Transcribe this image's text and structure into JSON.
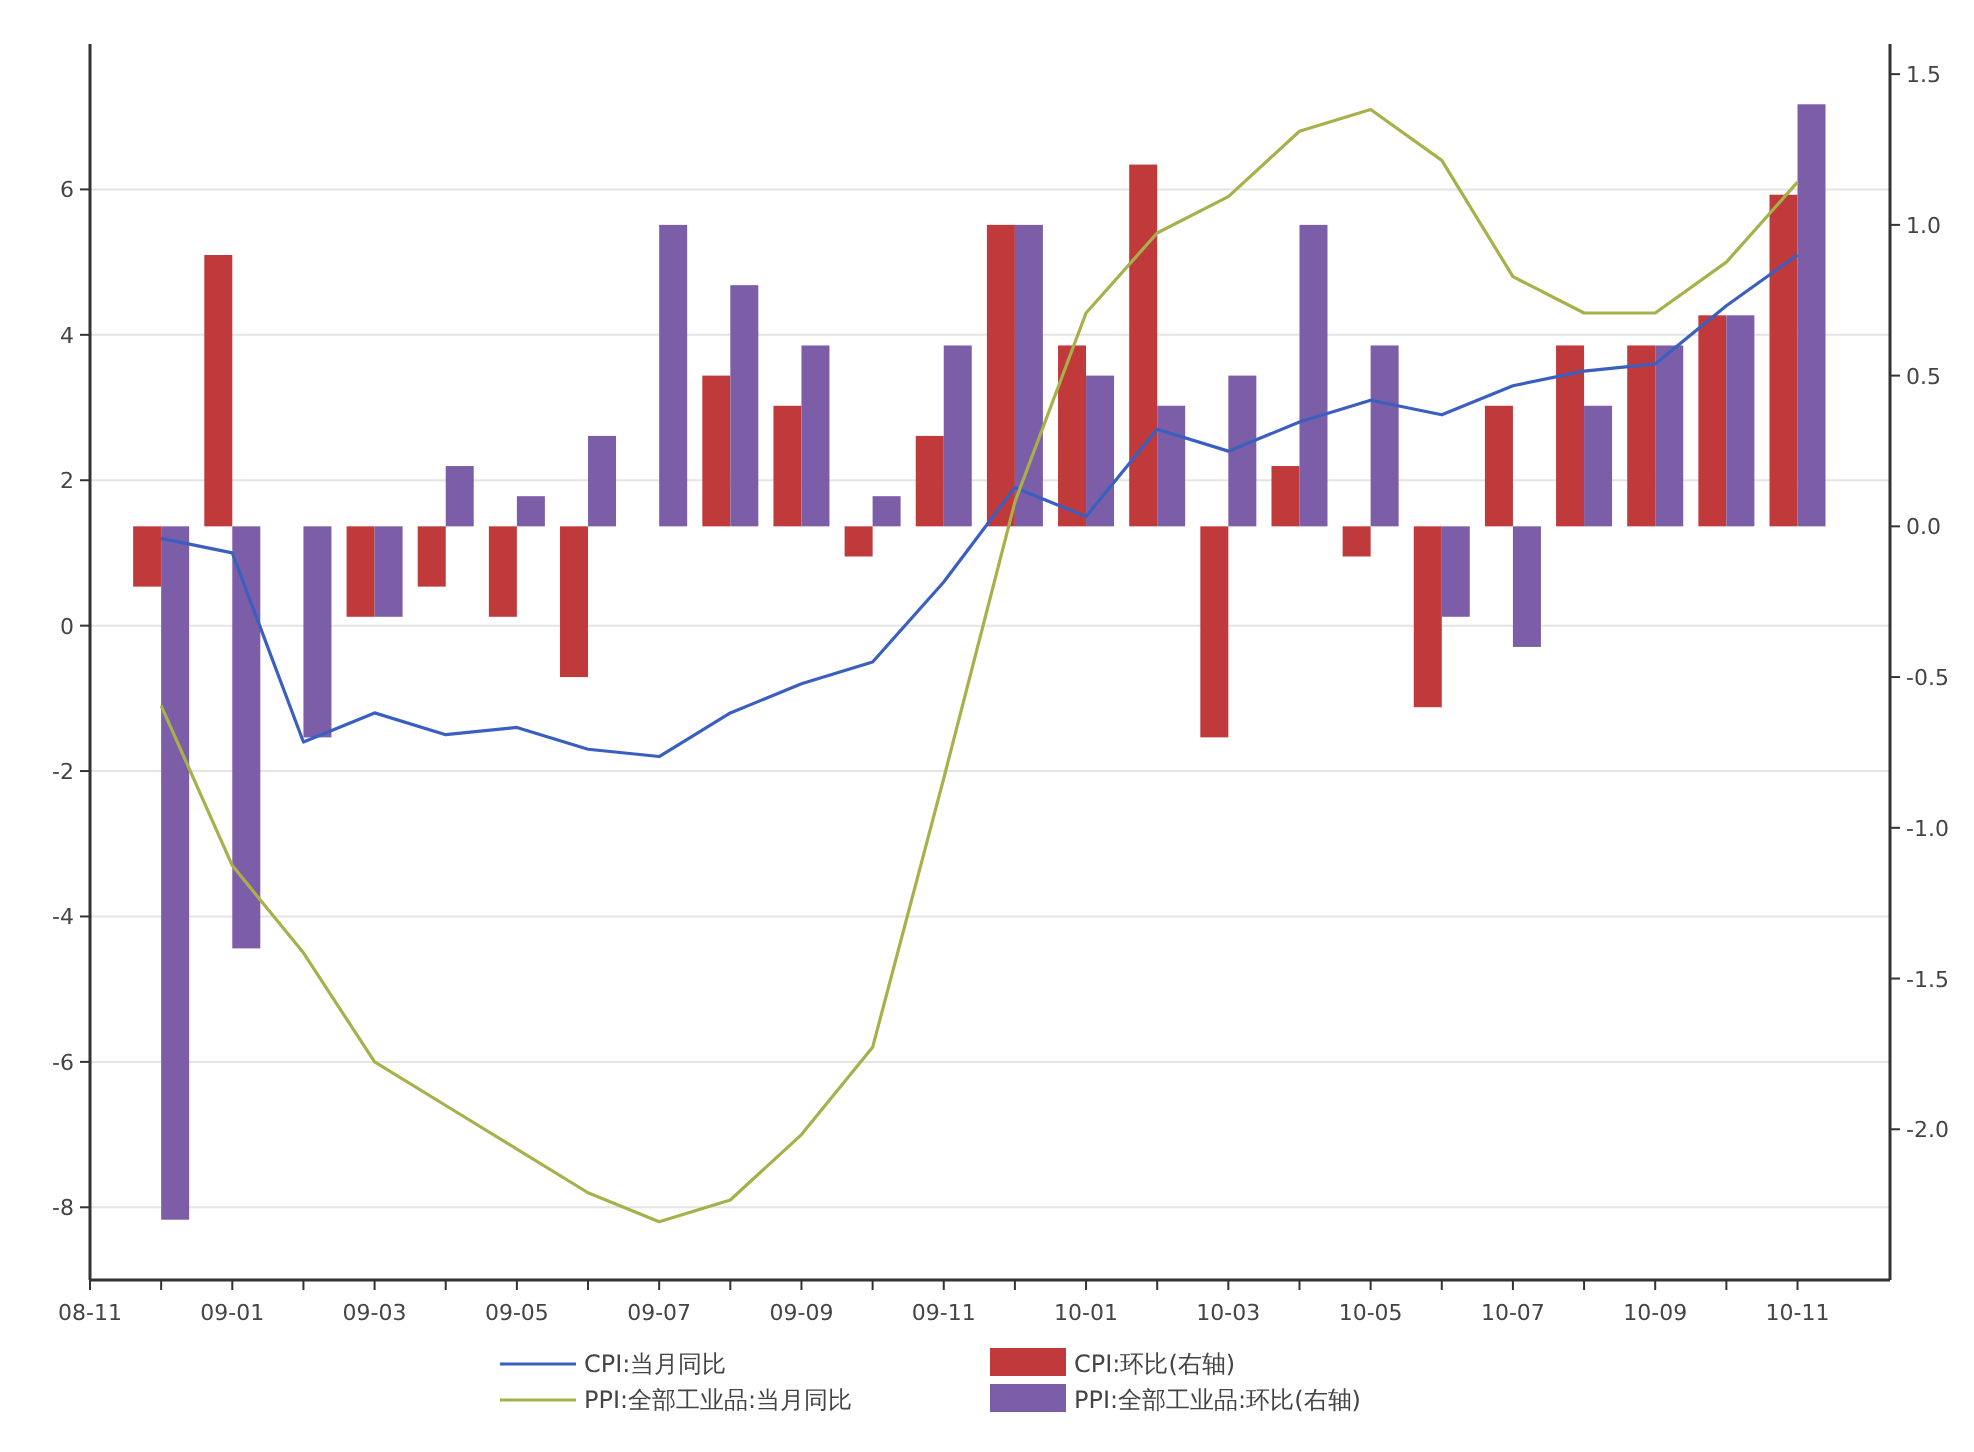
{
  "chart_data": {
    "type": "bar",
    "x": [
      "2008-12",
      "2009-01",
      "2009-02",
      "2009-03",
      "2009-04",
      "2009-05",
      "2009-06",
      "2009-07",
      "2009-08",
      "2009-09",
      "2009-10",
      "2009-11",
      "2009-12",
      "2010-01",
      "2010-02",
      "2010-03",
      "2010-04",
      "2010-05",
      "2010-06",
      "2010-07",
      "2010-08",
      "2010-09",
      "2010-10",
      "2010-11"
    ],
    "series": [
      {
        "name": "CPI:当月同比",
        "type": "line",
        "color": "#3a5fbf",
        "values": [
          1.2,
          1.0,
          -1.6,
          -1.2,
          -1.5,
          -1.4,
          -1.7,
          -1.8,
          -1.2,
          -0.8,
          -0.5,
          0.6,
          1.9,
          1.5,
          2.7,
          2.4,
          2.8,
          3.1,
          2.9,
          3.3,
          3.5,
          3.6,
          4.4,
          5.1
        ]
      },
      {
        "name": "CPI:环比(右轴)",
        "axis": "y2",
        "color": "#c0393b",
        "values": [
          -0.2,
          0.9,
          0,
          -0.3,
          -0.2,
          -0.3,
          -0.5,
          0,
          0.5,
          0.4,
          -0.1,
          0.3,
          1.0,
          0.6,
          1.2,
          -0.7,
          0.2,
          -0.1,
          -0.6,
          0.4,
          0.6,
          0.6,
          0.7,
          1.1
        ]
      },
      {
        "name": "PPI:全部工业品:当月同比",
        "type": "line",
        "color": "#a8b04a",
        "values": [
          -1.1,
          -3.3,
          -4.5,
          -6.0,
          -6.6,
          -7.2,
          -7.8,
          -8.2,
          -7.9,
          -7.0,
          -5.8,
          -2.1,
          1.7,
          4.3,
          5.4,
          5.9,
          6.8,
          7.1,
          6.4,
          4.8,
          4.3,
          4.3,
          5.0,
          6.1
        ]
      },
      {
        "name": "PPI:全部工业品:环比(右轴)",
        "axis": "y2",
        "color": "#7b5ea7",
        "values": [
          -2.3,
          -1.4,
          -0.7,
          -0.3,
          0.2,
          0.1,
          0.3,
          1.0,
          0.8,
          0.6,
          0.1,
          0.6,
          1.0,
          0.5,
          0.4,
          0.5,
          1.0,
          0.6,
          -0.3,
          -0.4,
          0.4,
          0.6,
          0.7,
          1.4
        ]
      }
    ],
    "xlim": [
      "2008-11",
      "2010-12-10"
    ],
    "xticks": [
      {
        "value": "2008-11",
        "label": "08-11"
      },
      {
        "value": "2008-12",
        "label": null
      },
      {
        "value": "2009-01",
        "label": "09-01"
      },
      {
        "value": "2009-02",
        "label": null
      },
      {
        "value": "2009-03",
        "label": "09-03"
      },
      {
        "value": "2009-04",
        "label": null
      },
      {
        "value": "2009-05",
        "label": "09-05"
      },
      {
        "value": "2009-06",
        "label": null
      },
      {
        "value": "2009-07",
        "label": "09-07"
      },
      {
        "value": "2009-08",
        "label": null
      },
      {
        "value": "2009-09",
        "label": "09-09"
      },
      {
        "value": "2009-10",
        "label": null
      },
      {
        "value": "2009-11",
        "label": "09-11"
      },
      {
        "value": "2009-12",
        "label": null
      },
      {
        "value": "2010-01",
        "label": "10-01"
      },
      {
        "value": "2010-02",
        "label": null
      },
      {
        "value": "2010-03",
        "label": "10-03"
      },
      {
        "value": "2010-04",
        "label": null
      },
      {
        "value": "2010-05",
        "label": "10-05"
      },
      {
        "value": "2010-06",
        "label": null
      },
      {
        "value": "2010-07",
        "label": "10-07"
      },
      {
        "value": "2010-08",
        "label": null
      },
      {
        "value": "2010-09",
        "label": "10-09"
      },
      {
        "value": "2010-10",
        "label": null
      },
      {
        "value": "2010-11",
        "label": "10-11"
      }
    ],
    "ylim": [
      -9,
      8
    ],
    "yticks": [
      -8,
      -6,
      -4,
      -2,
      0,
      2,
      4,
      6
    ],
    "y2lim": [
      -2.5,
      1.6
    ],
    "y2ticks": [
      {
        "value": -2,
        "label": "-2.0"
      },
      {
        "value": -1.5,
        "label": "-1.5"
      },
      {
        "value": -1,
        "label": "-1.0"
      },
      {
        "value": -0.5,
        "label": "-0.5"
      },
      {
        "value": 0,
        "label": "0.0"
      },
      {
        "value": 0.5,
        "label": "0.5"
      },
      {
        "value": 1,
        "label": "1.0"
      },
      {
        "value": 1.5,
        "label": "1.5"
      }
    ],
    "grid": "y",
    "legend": "bottom"
  }
}
